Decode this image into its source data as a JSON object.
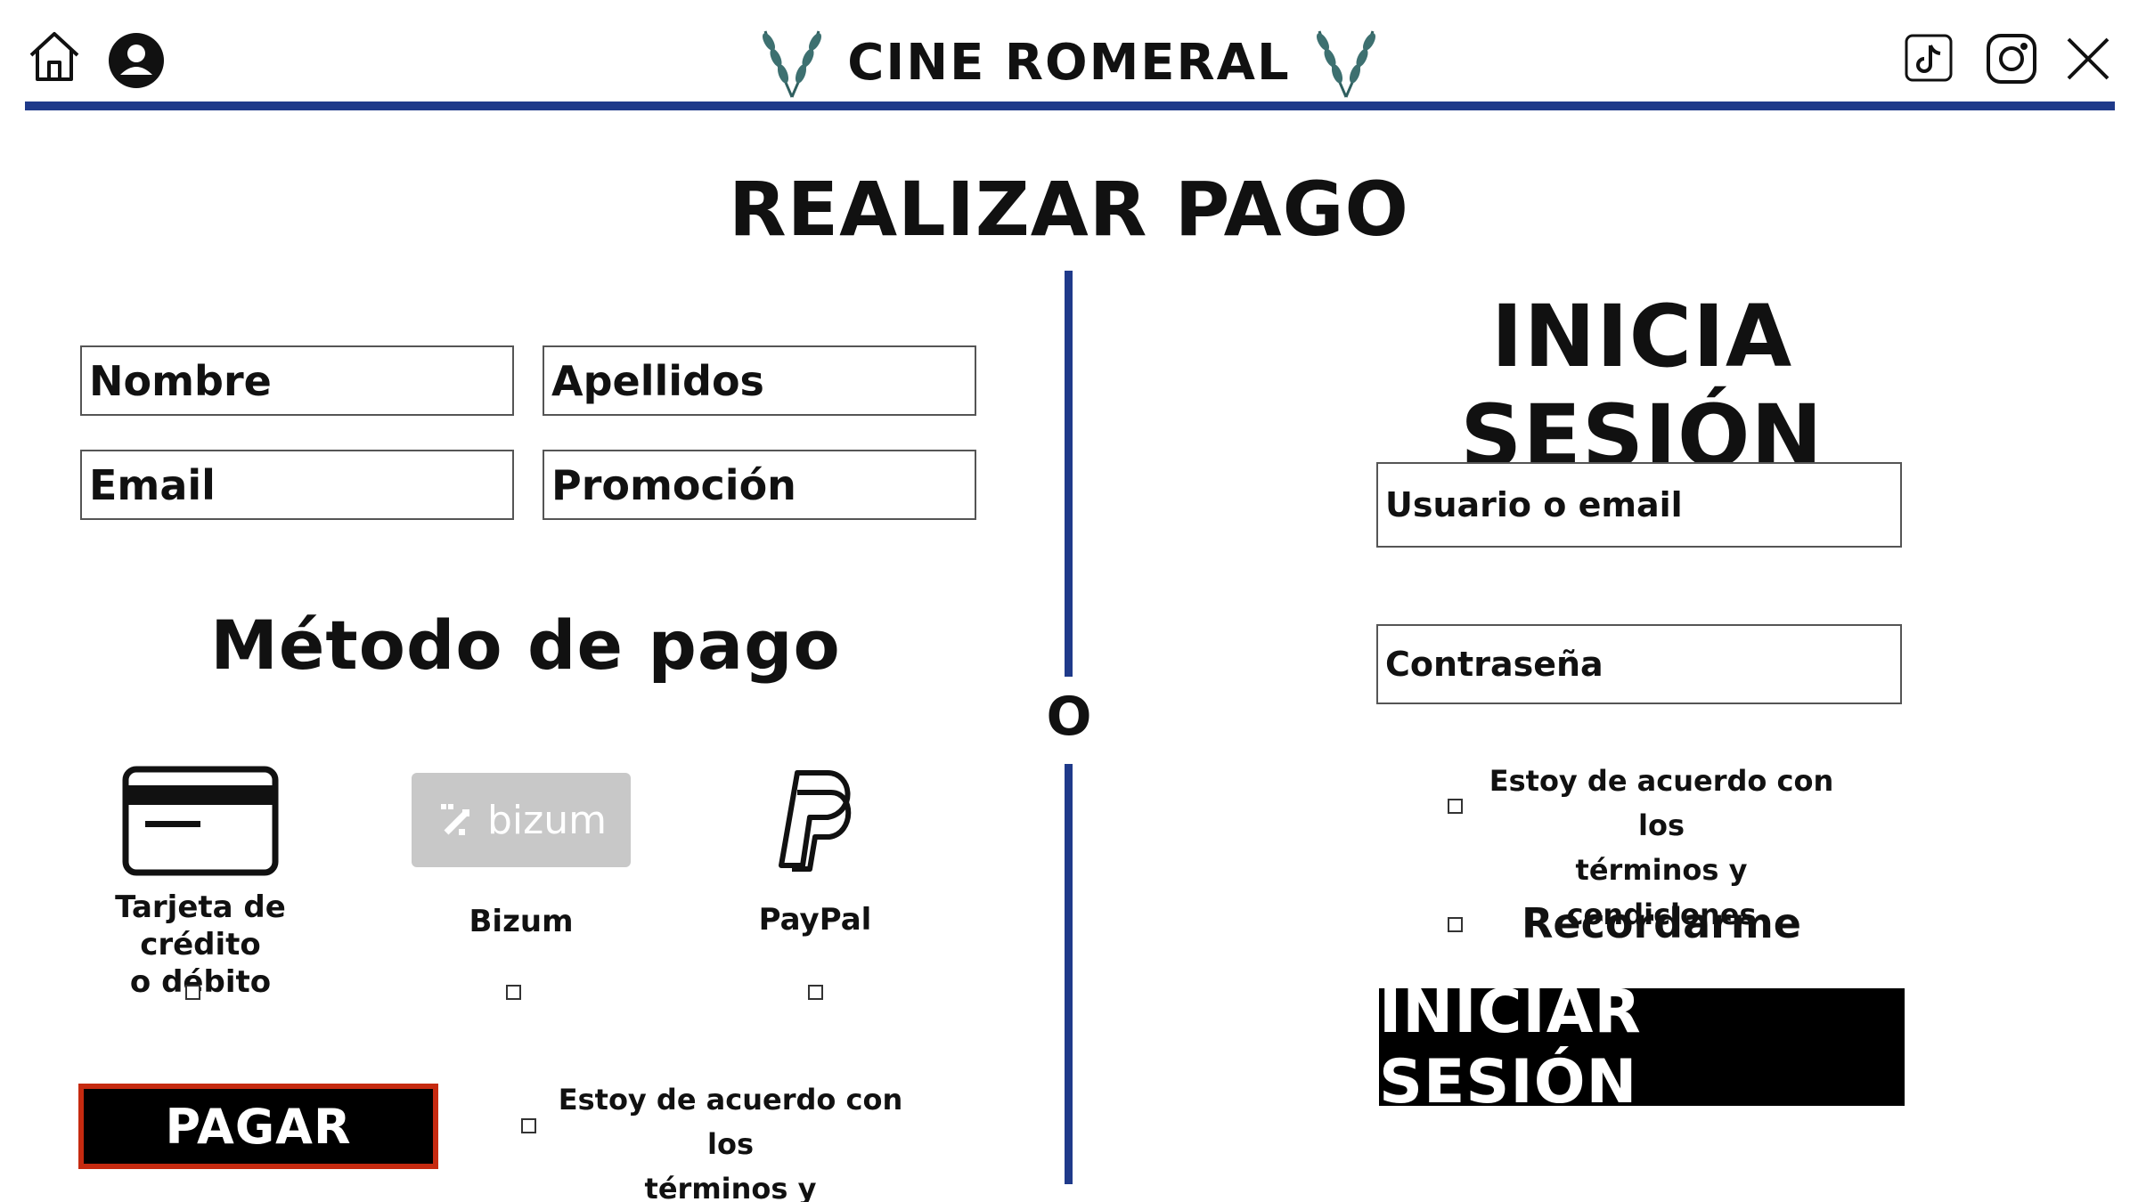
{
  "header": {
    "brand_title": "CINE ROMERAL",
    "icons": [
      "home-icon",
      "user-account-icon",
      "laurel-icon",
      "tiktok-icon",
      "instagram-icon",
      "x-icon"
    ]
  },
  "payment": {
    "title": "REALIZAR PAGO",
    "fields": {
      "nombre": "Nombre",
      "apellidos": "Apellidos",
      "email": "Email",
      "promocion": "Promoción"
    },
    "method_title": "Método de pago",
    "methods": [
      {
        "label_line1": "Tarjeta de crédito",
        "label_line2": "o débito",
        "icon": "credit-card-icon"
      },
      {
        "label": "Bizum",
        "logo_text": "bizum",
        "icon": "bizum-logo"
      },
      {
        "label": "PayPal",
        "icon": "paypal-icon"
      }
    ],
    "pay_button": "PAGAR",
    "terms_line1": "Estoy de acuerdo con los",
    "terms_line2": "términos y condiciones"
  },
  "divider": {
    "or_text": "O"
  },
  "login": {
    "title": "INICIA SESIÓN",
    "username_placeholder": "Usuario o email",
    "password_placeholder": "Contraseña",
    "terms_line1": "Estoy de acuerdo con los",
    "terms_line2": "términos y condiciones",
    "remember": "Recordarme",
    "submit": "INICIAR SESIÓN"
  },
  "colors": {
    "accent_blue": "#1f3a8a",
    "pay_border": "#c62a10",
    "bizum_gray": "#c8c8c8"
  }
}
